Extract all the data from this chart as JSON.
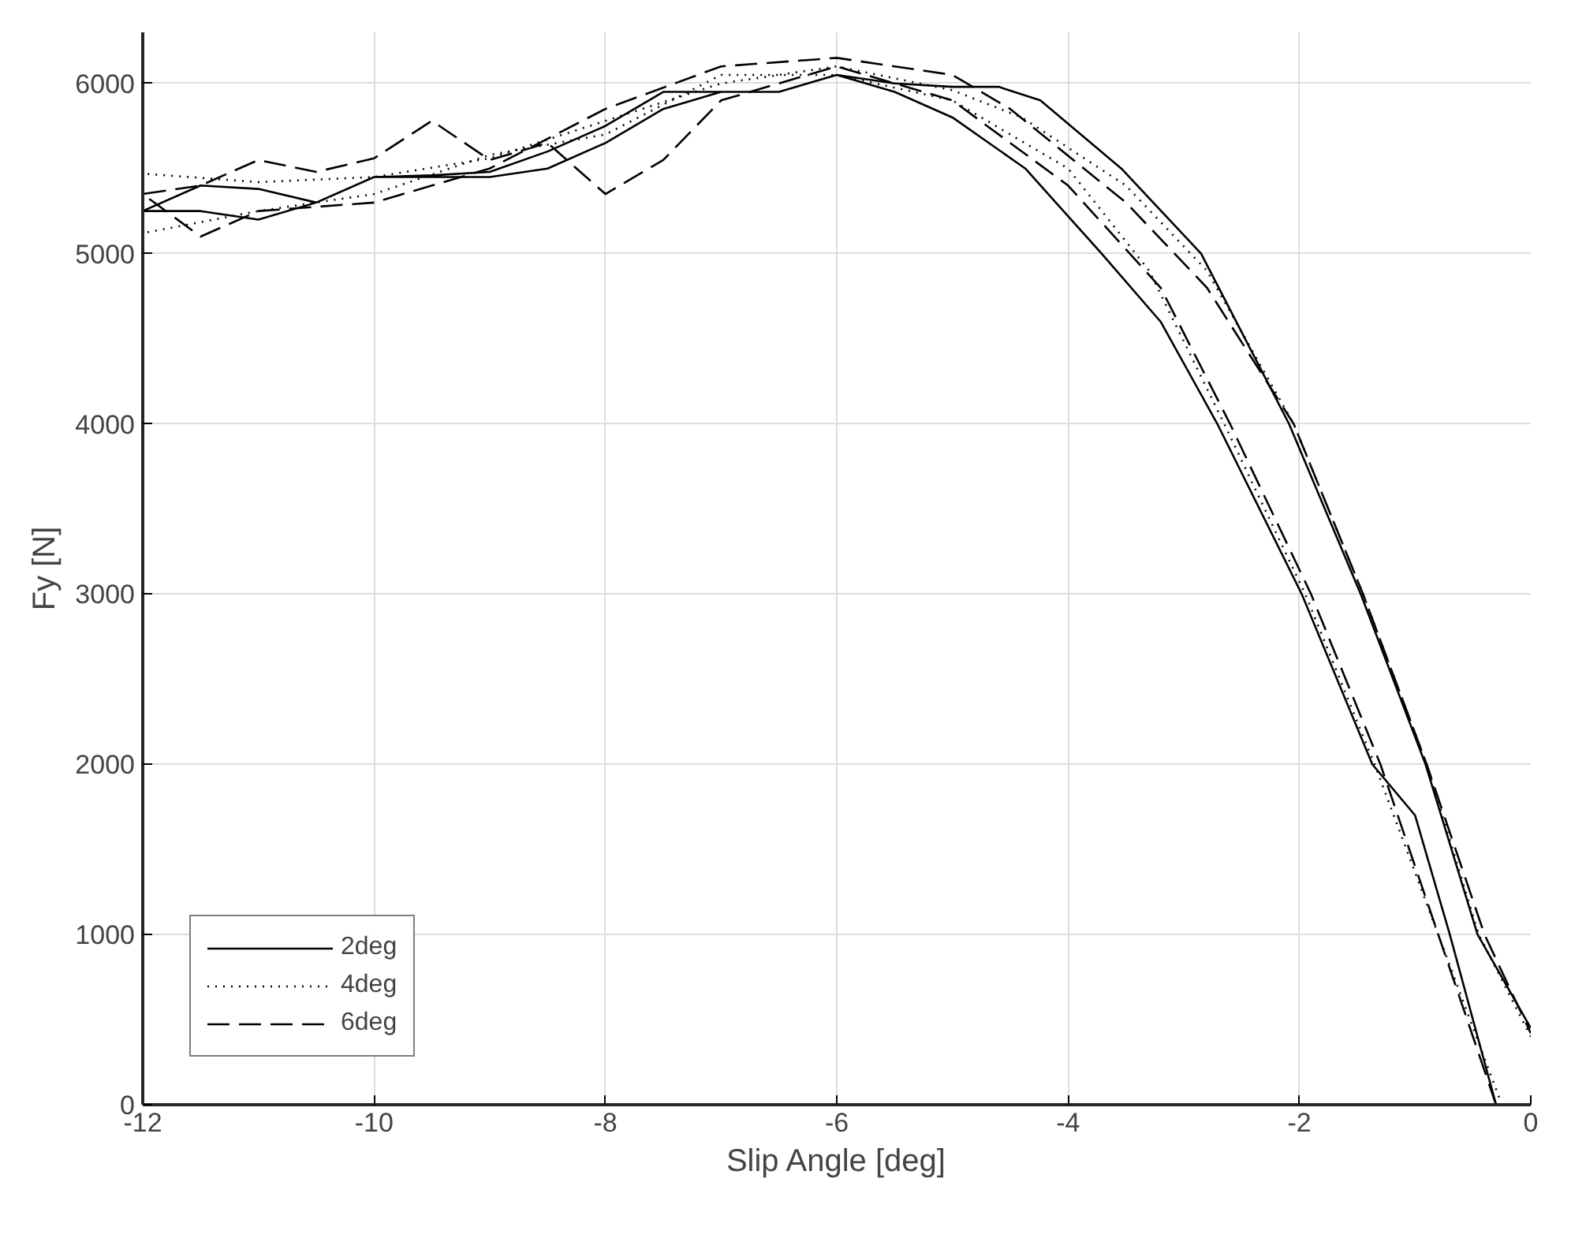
{
  "chart_data": {
    "type": "line",
    "xlabel": "Slip Angle [deg]",
    "ylabel": "Fy [N]",
    "xlim": [
      -12,
      0
    ],
    "ylim": [
      0,
      6300
    ],
    "xticks": [
      -12,
      -10,
      -8,
      -6,
      -4,
      -2,
      0
    ],
    "yticks": [
      0,
      1000,
      2000,
      3000,
      4000,
      5000,
      6000
    ],
    "grid": true,
    "legend": "bottom left",
    "marker": "none",
    "series": [
      {
        "name": "2deg",
        "color": "#000000",
        "line_style": "solid",
        "x": [
          -0.3,
          -0.7,
          -1.0,
          -1.37,
          -1.98,
          -2.71,
          -3.2,
          -3.71,
          -4.37,
          -5.0,
          -5.5,
          -6.0,
          -6.5,
          -7.0,
          -7.5,
          -8.0,
          -8.5,
          -9.0,
          -9.5,
          -10.0,
          -10.5,
          -11.0,
          -11.5,
          -12.0,
          -11.5,
          -11.0,
          -10.5,
          -10.0,
          -9.5,
          -9.0,
          -8.5,
          -8.0,
          -7.5,
          -7.0,
          -6.5,
          -6.0,
          -5.5,
          -5.0,
          -4.6,
          -4.24,
          -3.54,
          -2.85,
          -2.09,
          -1.47,
          -0.91,
          -0.46,
          0
        ],
        "values": [
          0,
          1000,
          1700,
          2000,
          3000,
          4000,
          4600,
          5000,
          5500,
          5800,
          5950,
          6050,
          5950,
          5950,
          5850,
          5650,
          5500,
          5450,
          5450,
          5450,
          5300,
          5200,
          5250,
          5250,
          5400,
          5380,
          5300,
          5450,
          5460,
          5480,
          5600,
          5750,
          5950,
          5950,
          5950,
          6050,
          6000,
          5980,
          5980,
          5900,
          5500,
          5000,
          4000,
          3000,
          2000,
          1000,
          450
        ]
      },
      {
        "name": "4deg",
        "color": "#000000",
        "line_style": "dotted",
        "x": [
          -0.25,
          -1.35,
          -1.95,
          -2.65,
          -3.3,
          -4.0,
          -5.0,
          -6.0,
          -7.0,
          -8.0,
          -9.0,
          -10.0,
          -11.0,
          -12.0,
          -12.0,
          -11.0,
          -10.0,
          -9.0,
          -8.0,
          -7.0,
          -6.0,
          -5.0,
          -4.4,
          -3.5,
          -2.8,
          -2.05,
          -1.45,
          -0.9,
          -0.45,
          0
        ],
        "values": [
          0,
          2000,
          3000,
          4000,
          4900,
          5500,
          5900,
          6050,
          6050,
          5700,
          5580,
          5350,
          5250,
          5120,
          5470,
          5420,
          5450,
          5560,
          5780,
          6000,
          6100,
          5960,
          5800,
          5400,
          4900,
          4000,
          3000,
          2000,
          1000,
          400
        ]
      },
      {
        "name": "6deg",
        "color": "#000000",
        "line_style": "dashed",
        "x": [
          -0.3,
          -1.3,
          -1.9,
          -2.6,
          -3.2,
          -4.0,
          -5.0,
          -6.0,
          -7.0,
          -7.5,
          -8.0,
          -8.5,
          -9.0,
          -9.5,
          -10.0,
          -10.5,
          -11.0,
          -11.5,
          -12.0,
          -11.5,
          -11.0,
          -10.0,
          -9.0,
          -8.0,
          -7.0,
          -6.0,
          -5.0,
          -4.5,
          -3.5,
          -2.8,
          -2.05,
          -1.45,
          -0.9,
          -0.4,
          0
        ],
        "values": [
          0,
          2000,
          3000,
          4000,
          4800,
          5400,
          5900,
          6100,
          5900,
          5550,
          5350,
          5650,
          5550,
          5780,
          5560,
          5480,
          5550,
          5400,
          5350,
          5100,
          5250,
          5300,
          5500,
          5850,
          6100,
          6150,
          6050,
          5850,
          5300,
          4800,
          4000,
          3000,
          2000,
          1000,
          420
        ]
      }
    ]
  }
}
